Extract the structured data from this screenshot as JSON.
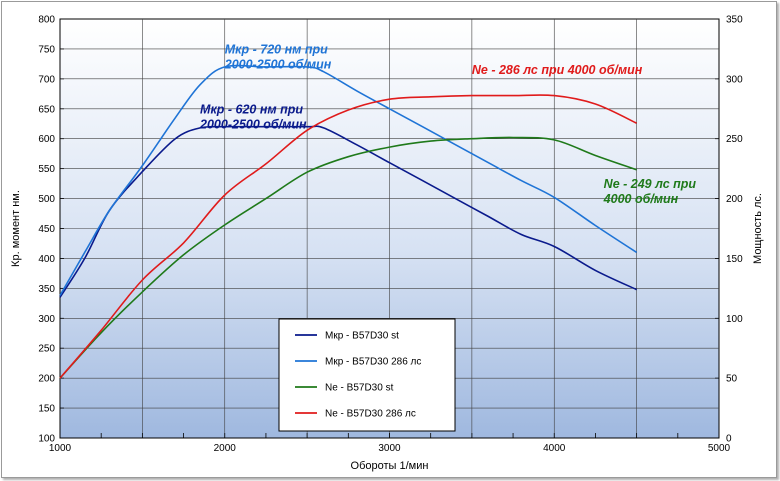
{
  "chart_data": {
    "type": "line",
    "title": "",
    "xlabel": "Обороты  1/мин",
    "ylabel_left": "Кр.  момент  нм.",
    "ylabel_right": "Мощность  лс.",
    "xlim": [
      1000,
      5000
    ],
    "ylim_left": [
      100,
      800
    ],
    "ylim_right": [
      0,
      350
    ],
    "x_ticks": [
      "1000",
      "2000",
      "3000",
      "4000",
      "5000"
    ],
    "y_left_ticks": [
      "100",
      "150",
      "200",
      "250",
      "300",
      "350",
      "400",
      "450",
      "500",
      "550",
      "600",
      "650",
      "700",
      "750",
      "800"
    ],
    "y_right_ticks": [
      "0",
      "50",
      "100",
      "150",
      "200",
      "250",
      "300",
      "350"
    ],
    "grid": true,
    "legend_position": "bottom-center",
    "colors": {
      "mkr_st": "#0a1a8c",
      "mkr_286": "#1f74d6",
      "ne_st": "#1f7a1a",
      "ne_286": "#e01b1b"
    },
    "series": [
      {
        "name": "Мкр - B57D30  st",
        "axis": "left",
        "color": "#0a1a8c",
        "x": [
          1000,
          1150,
          1300,
          1500,
          1700,
          1850,
          2000,
          2250,
          2500,
          2600,
          2800,
          3000,
          3200,
          3400,
          3600,
          3800,
          4000,
          4250,
          4500
        ],
        "values": [
          335,
          400,
          480,
          545,
          600,
          618,
          620,
          620,
          620,
          618,
          590,
          560,
          530,
          500,
          470,
          440,
          420,
          380,
          348
        ]
      },
      {
        "name": "Мкр - B57D30  286 лс",
        "axis": "left",
        "color": "#1f74d6",
        "x": [
          1000,
          1150,
          1300,
          1500,
          1700,
          1850,
          2000,
          2250,
          2500,
          2600,
          2800,
          3000,
          3200,
          3400,
          3600,
          3800,
          4000,
          4250,
          4500
        ],
        "values": [
          338,
          410,
          480,
          555,
          635,
          690,
          720,
          720,
          720,
          712,
          680,
          650,
          620,
          590,
          560,
          530,
          502,
          455,
          410
        ]
      },
      {
        "name": "Ne -  B57D30  st",
        "axis": "right",
        "color": "#1f7a1a",
        "x": [
          1000,
          1250,
          1500,
          1750,
          2000,
          2250,
          2500,
          2750,
          3000,
          3250,
          3500,
          3750,
          4000,
          4250,
          4500
        ],
        "values": [
          50,
          88,
          122,
          153,
          178,
          200,
          222,
          235,
          243,
          248,
          250,
          251,
          249,
          236,
          224
        ]
      },
      {
        "name": "Ne -  B57D30  286 лс",
        "axis": "right",
        "color": "#e01b1b",
        "x": [
          1000,
          1250,
          1500,
          1750,
          2000,
          2250,
          2500,
          2750,
          3000,
          3250,
          3500,
          3750,
          4000,
          4250,
          4500
        ],
        "values": [
          50,
          90,
          132,
          163,
          203,
          229,
          257,
          274,
          283,
          285,
          286,
          286,
          286,
          279,
          263
        ]
      }
    ],
    "annotations": [
      {
        "lines": [
          "Мкр - 720 нм при",
          "2000-2500 об/мин"
        ],
        "color": "#1f74d6",
        "x": 2000,
        "y": 742,
        "axis": "left"
      },
      {
        "lines": [
          "Мкр - 620 нм при",
          "2000-2500 об/мин"
        ],
        "color": "#0a1a8c",
        "x": 1850,
        "y": 642,
        "axis": "left"
      },
      {
        "lines": [
          "Ne - 286 лс при 4000 об/мин"
        ],
        "color": "#e01b1b",
        "x": 3500,
        "y": 304,
        "axis": "right"
      },
      {
        "lines": [
          "Ne - 249 лс при",
          "4000 об/мин"
        ],
        "color": "#1f7a1a",
        "x": 4300,
        "y": 209,
        "axis": "right"
      }
    ]
  }
}
